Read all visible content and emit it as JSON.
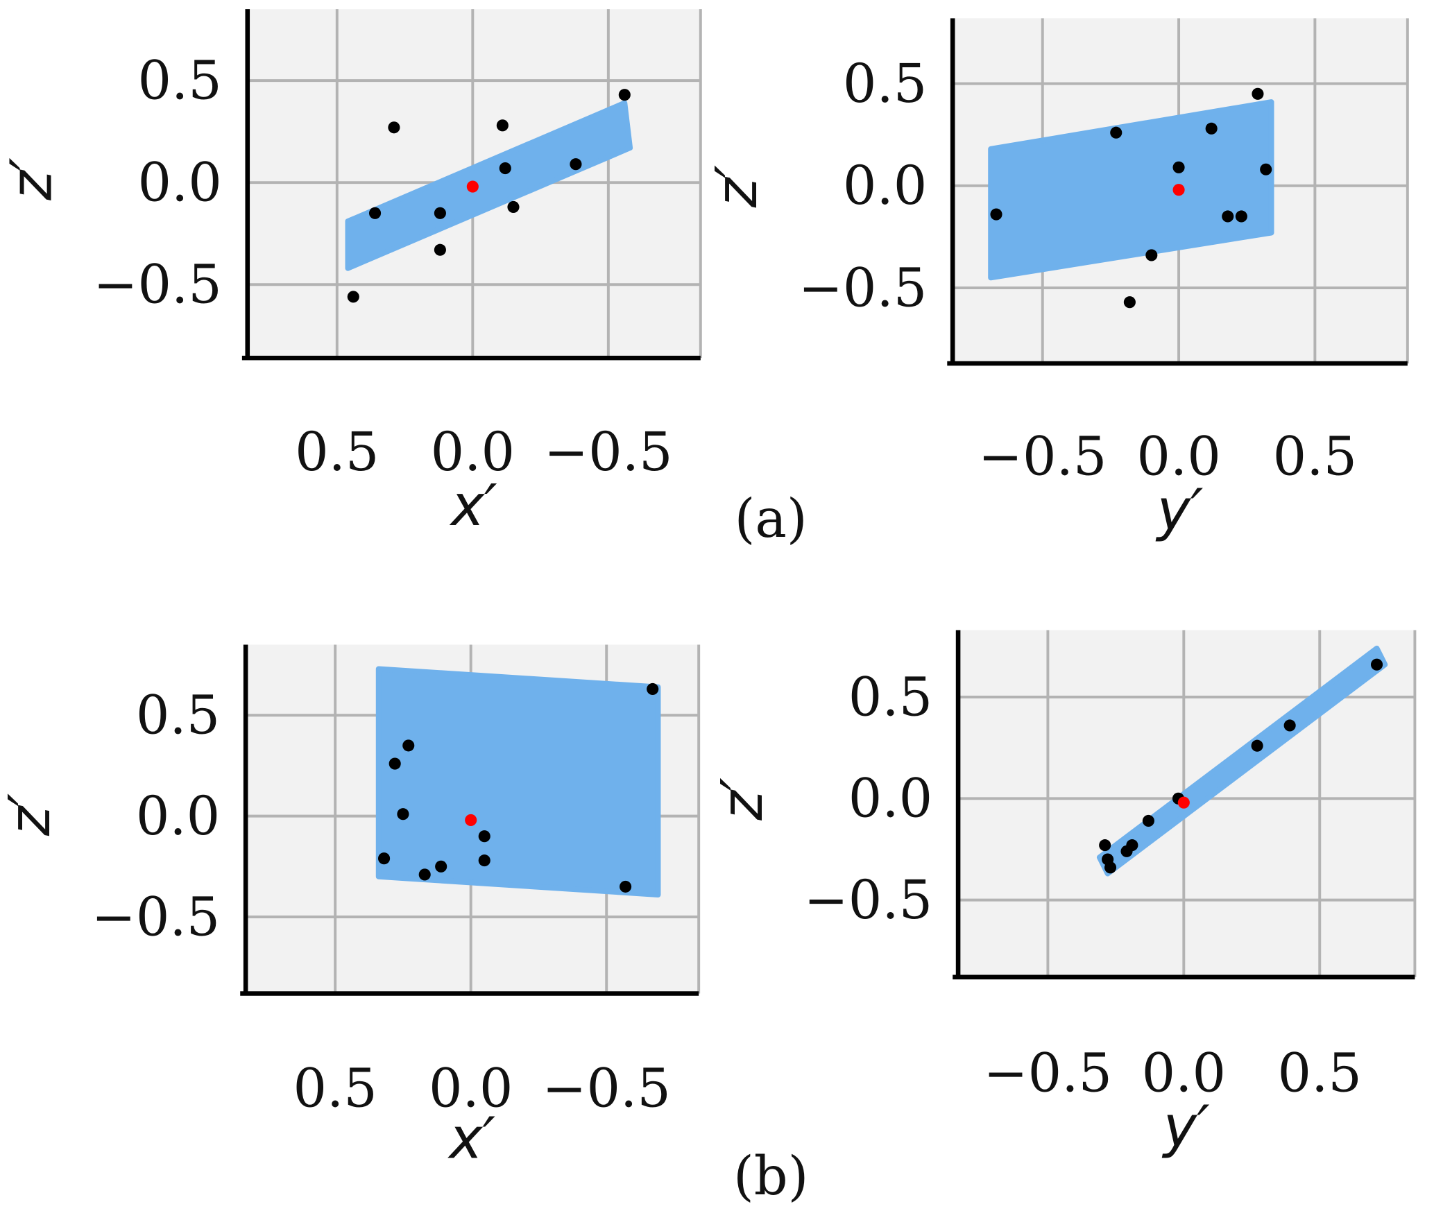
{
  "chart_data": [
    {
      "type": "scatter",
      "panel": "a-left",
      "xlabel": "x′",
      "ylabel": "z′",
      "xlim": [
        0.83,
        -0.84
      ],
      "ylim": [
        -0.86,
        0.85
      ],
      "xticks": [
        0.5,
        0.0,
        -0.5
      ],
      "xtick_labels": [
        "0.5",
        "0.0",
        "−0.5"
      ],
      "yticks": [
        0.5,
        0.0,
        -0.5
      ],
      "ytick_labels": [
        "0.5",
        "0.0",
        "−0.5"
      ],
      "grid": true,
      "points": [
        [
          0.29,
          0.27
        ],
        [
          -0.11,
          0.28
        ],
        [
          -0.56,
          0.43
        ],
        [
          -0.12,
          0.07
        ],
        [
          -0.38,
          0.09
        ],
        [
          0.36,
          -0.15
        ],
        [
          0.12,
          -0.15
        ],
        [
          -0.15,
          -0.12
        ],
        [
          0.12,
          -0.33
        ],
        [
          0.44,
          -0.56
        ]
      ],
      "center": [
        0.0,
        -0.02
      ],
      "plane": [
        [
          0.46,
          -0.19
        ],
        [
          -0.56,
          0.39
        ],
        [
          -0.58,
          0.17
        ],
        [
          0.46,
          -0.42
        ]
      ]
    },
    {
      "type": "scatter",
      "panel": "a-right",
      "xlabel": "y′",
      "ylabel": "z′",
      "xlim": [
        -0.83,
        0.84
      ],
      "ylim": [
        -0.87,
        0.82
      ],
      "xticks": [
        -0.5,
        0.0,
        0.5
      ],
      "xtick_labels": [
        "−0.5",
        "0.0",
        "0.5"
      ],
      "yticks": [
        0.5,
        0.0,
        -0.5
      ],
      "ytick_labels": [
        "0.5",
        "0.0",
        "−0.5"
      ],
      "grid": true,
      "points": [
        [
          0.29,
          0.45
        ],
        [
          -0.23,
          0.26
        ],
        [
          0.12,
          0.28
        ],
        [
          0.0,
          0.09
        ],
        [
          0.32,
          0.08
        ],
        [
          -0.67,
          -0.14
        ],
        [
          0.18,
          -0.15
        ],
        [
          0.23,
          -0.15
        ],
        [
          -0.1,
          -0.34
        ],
        [
          -0.18,
          -0.57
        ]
      ],
      "center": [
        0.0,
        -0.02
      ],
      "plane": [
        [
          -0.69,
          0.18
        ],
        [
          0.34,
          0.41
        ],
        [
          0.34,
          -0.23
        ],
        [
          -0.69,
          -0.45
        ]
      ]
    },
    {
      "type": "scatter",
      "panel": "b-left",
      "xlabel": "x′",
      "ylabel": "z′",
      "xlim": [
        0.83,
        -0.84
      ],
      "ylim": [
        -0.88,
        0.85
      ],
      "xticks": [
        0.5,
        0.0,
        -0.5
      ],
      "xtick_labels": [
        "0.5",
        "0.0",
        "−0.5"
      ],
      "yticks": [
        0.5,
        0.0,
        -0.5
      ],
      "ytick_labels": [
        "0.5",
        "0.0",
        "−0.5"
      ],
      "grid": true,
      "points": [
        [
          -0.67,
          0.63
        ],
        [
          0.23,
          0.35
        ],
        [
          0.28,
          0.26
        ],
        [
          0.25,
          0.01
        ],
        [
          -0.05,
          -0.1
        ],
        [
          0.32,
          -0.21
        ],
        [
          -0.05,
          -0.22
        ],
        [
          0.11,
          -0.25
        ],
        [
          0.17,
          -0.29
        ],
        [
          -0.57,
          -0.35
        ]
      ],
      "center": [
        0.0,
        -0.02
      ],
      "plane": [
        [
          0.34,
          0.73
        ],
        [
          -0.69,
          0.64
        ],
        [
          -0.69,
          -0.39
        ],
        [
          0.34,
          -0.3
        ]
      ]
    },
    {
      "type": "scatter",
      "panel": "b-right",
      "xlabel": "y′",
      "ylabel": "z′",
      "xlim": [
        -0.83,
        0.85
      ],
      "ylim": [
        -0.88,
        0.83
      ],
      "xticks": [
        -0.5,
        0.0,
        0.5
      ],
      "xtick_labels": [
        "−0.5",
        "0.0",
        "0.5"
      ],
      "yticks": [
        0.5,
        0.0,
        -0.5
      ],
      "ytick_labels": [
        "0.5",
        "0.0",
        "−0.5"
      ],
      "grid": true,
      "points": [
        [
          0.71,
          0.66
        ],
        [
          0.39,
          0.36
        ],
        [
          0.27,
          0.26
        ],
        [
          -0.02,
          0.0
        ],
        [
          -0.13,
          -0.11
        ],
        [
          -0.19,
          -0.23
        ],
        [
          -0.21,
          -0.26
        ],
        [
          -0.29,
          -0.23
        ],
        [
          -0.28,
          -0.3
        ],
        [
          -0.27,
          -0.34
        ]
      ],
      "center": [
        0.0,
        -0.02
      ],
      "plane": [
        [
          -0.31,
          -0.29
        ],
        [
          0.71,
          0.74
        ],
        [
          0.74,
          0.66
        ],
        [
          -0.28,
          -0.37
        ]
      ]
    }
  ],
  "captions": [
    "(a)",
    "(b)"
  ],
  "colors": {
    "plane": "#6fb1ec",
    "point": "#000000",
    "center": "#ff0000",
    "grid": "#b3b3b3",
    "panel_bg": "#f2f2f2"
  }
}
